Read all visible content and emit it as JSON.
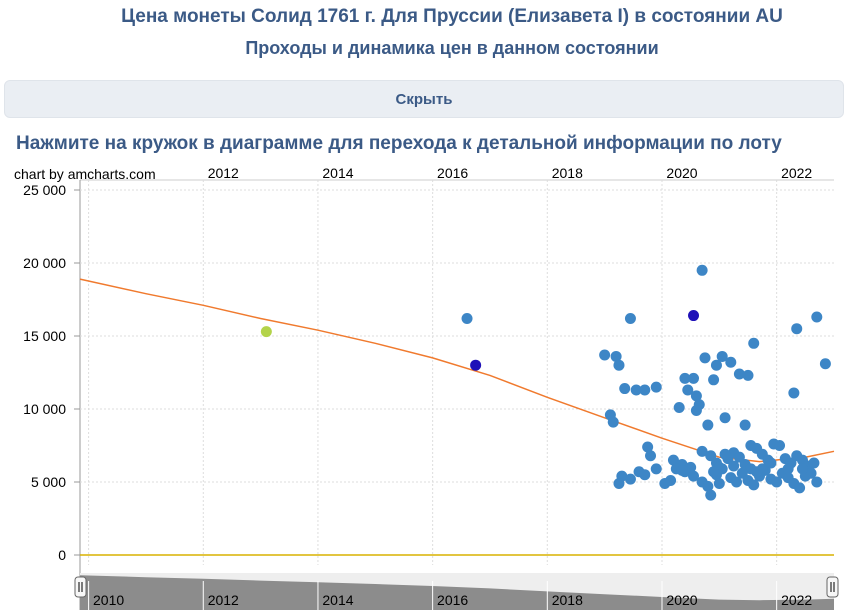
{
  "header": {
    "title": "Цена монеты Солид 1761 г. Для Пруссии (Елизавета I) в состоянии AU",
    "subtitle": "Проходы и динамика цен в данном состоянии"
  },
  "hide_button": {
    "label": "Скрыть"
  },
  "instruction": "Нажмите на кружок в диаграмме для перехода к детальной информации по лоту",
  "credit": "chart by amcharts.com",
  "colors": {
    "title": "#3b5a86",
    "point": "#3d86c6",
    "highlight": "#1f11b8",
    "first": "#b3d34a",
    "trend": "#f07a2e",
    "zero_line": "#d9b200",
    "scrollbar": "#8c8c8c"
  },
  "chart_data": {
    "type": "scatter",
    "x_axis": {
      "type": "date",
      "range": [
        "2009.9",
        "2023.0"
      ],
      "ticks": [
        "2010",
        "2012",
        "2014",
        "2016",
        "2018",
        "2020",
        "2022"
      ],
      "position": "top"
    },
    "y_axis": {
      "range": [
        0,
        25000
      ],
      "ticks": [
        "0",
        "5 000",
        "10 000",
        "15 000",
        "20 000",
        "25 000"
      ]
    },
    "grid": true,
    "trend_line": [
      [
        2009.85,
        18900
      ],
      [
        2011,
        17900
      ],
      [
        2012,
        17100
      ],
      [
        2013,
        16200
      ],
      [
        2014,
        15400
      ],
      [
        2015,
        14500
      ],
      [
        2016,
        13500
      ],
      [
        2017,
        12300
      ],
      [
        2018,
        10800
      ],
      [
        2019,
        9400
      ],
      [
        2020,
        8000
      ],
      [
        2021,
        6700
      ],
      [
        2021.7,
        6400
      ],
      [
        2022.5,
        6700
      ],
      [
        2023.0,
        7100
      ]
    ],
    "highlight_points": [
      [
        2013.1,
        15300,
        "first"
      ],
      [
        2016.75,
        13000,
        "highlight"
      ],
      [
        2020.55,
        16400,
        "highlight"
      ]
    ],
    "points": [
      [
        2016.6,
        16200
      ],
      [
        2019.45,
        16200
      ],
      [
        2020.7,
        19500
      ],
      [
        2022.35,
        15500
      ],
      [
        2022.7,
        16300
      ],
      [
        2022.85,
        13100
      ],
      [
        2019.0,
        13700
      ],
      [
        2019.2,
        13600
      ],
      [
        2019.25,
        13000
      ],
      [
        2019.55,
        11300
      ],
      [
        2019.7,
        11300
      ],
      [
        2019.9,
        11500
      ],
      [
        2019.35,
        11400
      ],
      [
        2020.4,
        12100
      ],
      [
        2020.55,
        12100
      ],
      [
        2020.45,
        11300
      ],
      [
        2020.3,
        10100
      ],
      [
        2020.6,
        10900
      ],
      [
        2020.65,
        10300
      ],
      [
        2020.6,
        9900
      ],
      [
        2020.75,
        13500
      ],
      [
        2021.05,
        13600
      ],
      [
        2020.95,
        13000
      ],
      [
        2021.2,
        13200
      ],
      [
        2021.35,
        12400
      ],
      [
        2021.5,
        12300
      ],
      [
        2020.9,
        12000
      ],
      [
        2021.6,
        14500
      ],
      [
        2022.3,
        11100
      ],
      [
        2019.1,
        9600
      ],
      [
        2019.15,
        9100
      ],
      [
        2020.8,
        8900
      ],
      [
        2021.1,
        9400
      ],
      [
        2021.45,
        8900
      ],
      [
        2019.75,
        7400
      ],
      [
        2019.8,
        6800
      ],
      [
        2020.2,
        6500
      ],
      [
        2020.35,
        6200
      ],
      [
        2020.5,
        6000
      ],
      [
        2020.7,
        7100
      ],
      [
        2020.85,
        6800
      ],
      [
        2020.95,
        6300
      ],
      [
        2021.0,
        6000
      ],
      [
        2021.15,
        6600
      ],
      [
        2021.25,
        7000
      ],
      [
        2021.35,
        6700
      ],
      [
        2021.45,
        6200
      ],
      [
        2021.55,
        5900
      ],
      [
        2021.65,
        7300
      ],
      [
        2021.75,
        6900
      ],
      [
        2021.85,
        6500
      ],
      [
        2021.95,
        7600
      ],
      [
        2022.05,
        7500
      ],
      [
        2022.15,
        6600
      ],
      [
        2022.25,
        6300
      ],
      [
        2022.35,
        6800
      ],
      [
        2022.45,
        6500
      ],
      [
        2022.55,
        6100
      ],
      [
        2022.65,
        6300
      ],
      [
        2019.3,
        5400
      ],
      [
        2019.25,
        4900
      ],
      [
        2019.45,
        5200
      ],
      [
        2019.6,
        5700
      ],
      [
        2019.7,
        5500
      ],
      [
        2019.9,
        5900
      ],
      [
        2020.05,
        4900
      ],
      [
        2020.15,
        5100
      ],
      [
        2020.25,
        5900
      ],
      [
        2020.4,
        5700
      ],
      [
        2020.55,
        5400
      ],
      [
        2020.7,
        5000
      ],
      [
        2020.8,
        4700
      ],
      [
        2020.85,
        4100
      ],
      [
        2020.95,
        5500
      ],
      [
        2021.05,
        5900
      ],
      [
        2021.2,
        5300
      ],
      [
        2021.3,
        5000
      ],
      [
        2021.4,
        5600
      ],
      [
        2021.5,
        5100
      ],
      [
        2021.6,
        4800
      ],
      [
        2021.7,
        5400
      ],
      [
        2021.8,
        5800
      ],
      [
        2021.9,
        5200
      ],
      [
        2022.0,
        5000
      ],
      [
        2022.1,
        5600
      ],
      [
        2022.2,
        5300
      ],
      [
        2022.3,
        4900
      ],
      [
        2022.4,
        4600
      ],
      [
        2022.5,
        5400
      ],
      [
        2022.6,
        5600
      ],
      [
        2022.7,
        5000
      ],
      [
        2021.1,
        6900
      ],
      [
        2021.25,
        6100
      ],
      [
        2021.75,
        5900
      ],
      [
        2022.2,
        5900
      ],
      [
        2020.35,
        5800
      ],
      [
        2021.55,
        7500
      ],
      [
        2021.9,
        6300
      ],
      [
        2022.45,
        5900
      ],
      [
        2020.9,
        5700
      ],
      [
        2021.0,
        4900
      ],
      [
        2021.65,
        5700
      ]
    ]
  },
  "scrollbar": {
    "labels": [
      "2010",
      "2012",
      "2014",
      "2016",
      "2018",
      "2020",
      "2022"
    ]
  }
}
